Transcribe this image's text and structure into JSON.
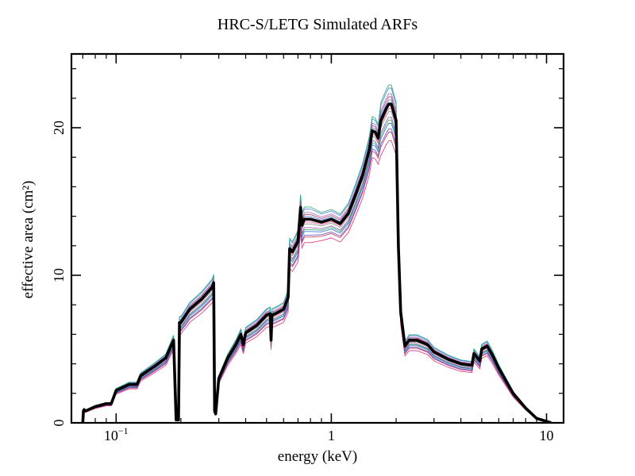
{
  "chart_data": {
    "type": "line",
    "title": "HRC-S/LETG Simulated ARFs",
    "xlabel": "energy (keV)",
    "ylabel": "effective area (cm²)",
    "xscale": "log",
    "xlim": [
      0.062,
      12
    ],
    "ylim": [
      0,
      25
    ],
    "grid": false,
    "x_ticks": [
      {
        "value": 0.1,
        "label": "10",
        "sup": "−1"
      },
      {
        "value": 1,
        "label": "1",
        "sup": ""
      },
      {
        "value": 10,
        "label": "10",
        "sup": ""
      }
    ],
    "y_ticks": [
      {
        "value": 0,
        "label": "0"
      },
      {
        "value": 10,
        "label": "10"
      },
      {
        "value": 20,
        "label": "20"
      }
    ],
    "mean_series": {
      "color": "#000000",
      "x": [
        0.07,
        0.0705,
        0.071,
        0.072,
        0.08,
        0.09,
        0.095,
        0.1,
        0.115,
        0.125,
        0.13,
        0.15,
        0.17,
        0.185,
        0.19,
        0.195,
        0.197,
        0.2,
        0.22,
        0.25,
        0.28,
        0.284,
        0.287,
        0.29,
        0.3,
        0.33,
        0.36,
        0.38,
        0.39,
        0.4,
        0.45,
        0.5,
        0.52,
        0.525,
        0.53,
        0.55,
        0.6,
        0.63,
        0.64,
        0.66,
        0.7,
        0.72,
        0.73,
        0.75,
        0.8,
        0.9,
        1.0,
        1.1,
        1.2,
        1.3,
        1.4,
        1.5,
        1.55,
        1.6,
        1.65,
        1.7,
        1.8,
        1.85,
        1.9,
        2.0,
        2.05,
        2.1,
        2.2,
        2.3,
        2.5,
        2.8,
        3.0,
        3.5,
        4.0,
        4.5,
        4.6,
        4.9,
        5.0,
        5.3,
        5.6,
        6.0,
        7.0,
        8.0,
        9.0,
        10.0,
        10.5
      ],
      "y": [
        0.0,
        0.8,
        0.9,
        0.8,
        1.1,
        1.3,
        1.3,
        2.2,
        2.6,
        2.6,
        3.2,
        3.8,
        4.4,
        5.6,
        0.2,
        0.2,
        6.8,
        6.8,
        7.7,
        8.4,
        9.2,
        9.5,
        0.8,
        0.6,
        3.0,
        4.4,
        5.3,
        6.0,
        5.3,
        6.1,
        6.6,
        7.3,
        7.4,
        5.6,
        7.3,
        7.4,
        7.7,
        8.5,
        11.8,
        11.6,
        12.3,
        14.6,
        13.4,
        13.8,
        13.8,
        13.6,
        13.8,
        13.5,
        14.2,
        15.5,
        16.8,
        18.5,
        19.8,
        19.7,
        19.3,
        20.5,
        21.3,
        21.6,
        21.6,
        20.5,
        12.0,
        7.5,
        5.2,
        5.6,
        5.6,
        5.3,
        4.8,
        4.3,
        4.0,
        3.9,
        4.7,
        4.2,
        5.0,
        5.2,
        4.6,
        3.7,
        2.0,
        1.0,
        0.3,
        0.1,
        0.0
      ]
    },
    "simulated_colors": [
      "#d4237a",
      "#c41e3a",
      "#2b5fd9",
      "#5a3fbf",
      "#1fae5b",
      "#808080",
      "#8e44ad",
      "#e8407a",
      "#3b7dd8",
      "#20b2aa",
      "#b03060",
      "#4a6fe3",
      "#9467bd",
      "#17a673"
    ]
  }
}
